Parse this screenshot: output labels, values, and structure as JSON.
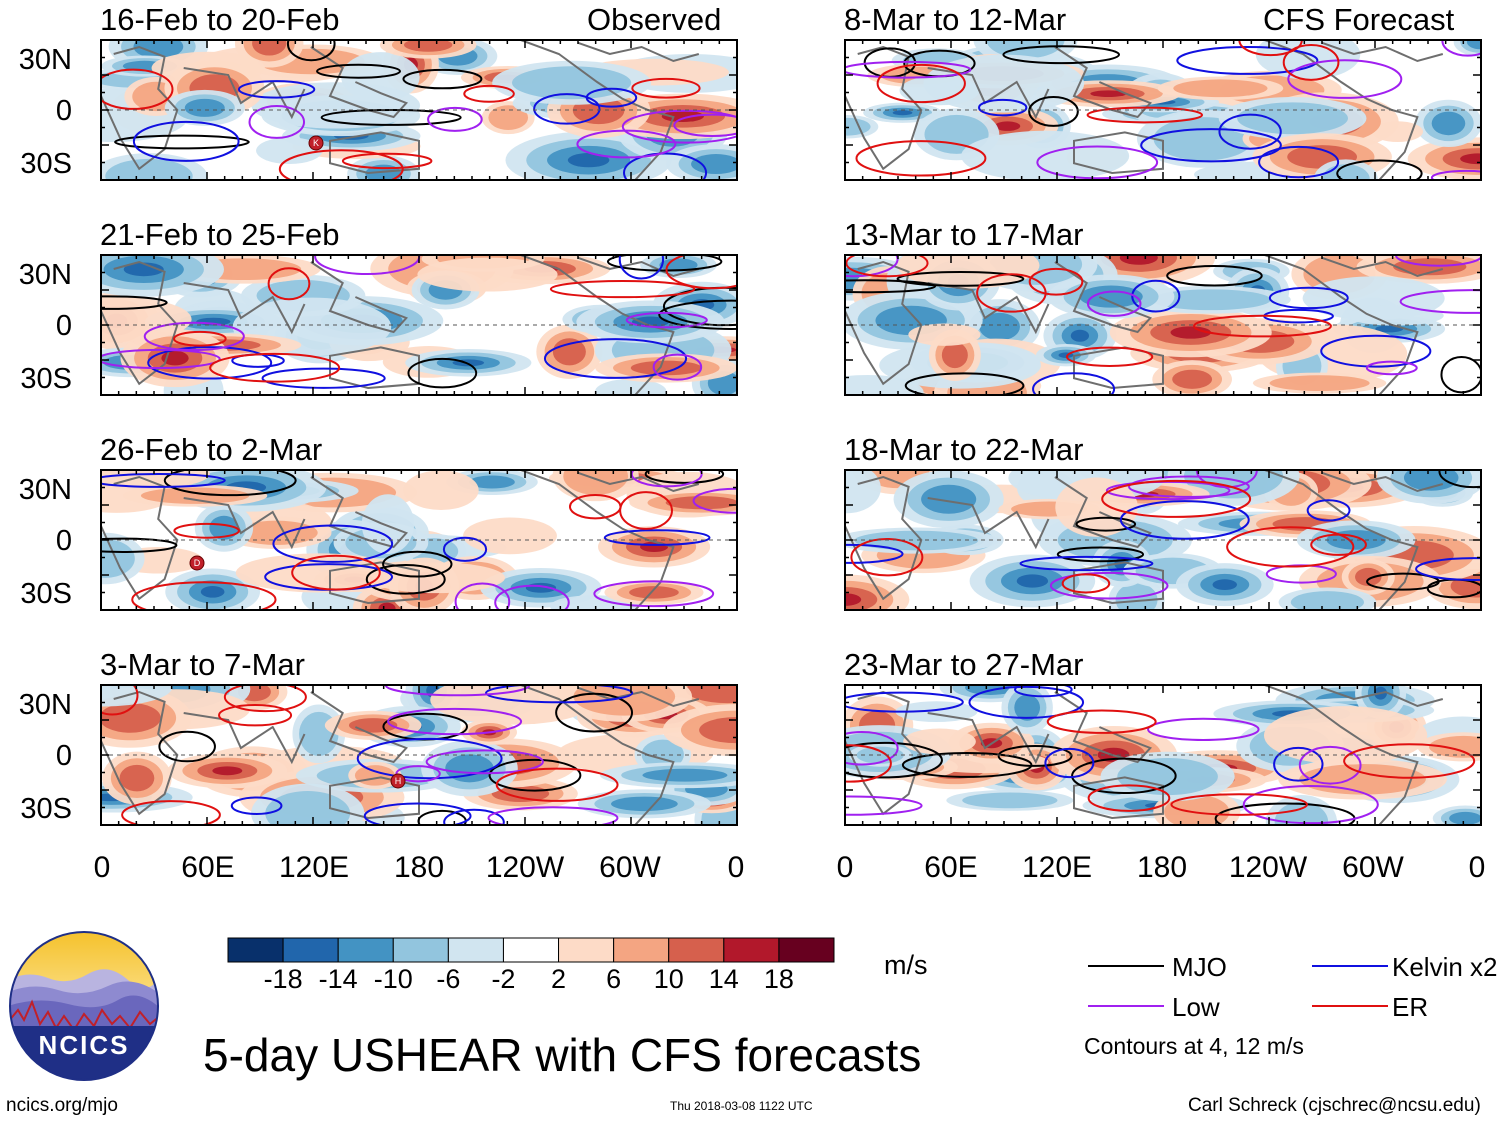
{
  "main_title": "5-day USHEAR with CFS forecasts",
  "observed_label": "Observed",
  "forecast_label": "CFS Forecast",
  "lat_labels": [
    "30N",
    "0",
    "30S"
  ],
  "lon_labels": [
    "0",
    "60E",
    "120E",
    "180",
    "120W",
    "60W",
    "0"
  ],
  "panels": {
    "left": [
      {
        "title": "16-Feb to 20-Feb"
      },
      {
        "title": "21-Feb to 25-Feb"
      },
      {
        "title": "26-Feb to 2-Mar"
      },
      {
        "title": "3-Mar to 7-Mar"
      }
    ],
    "right": [
      {
        "title": "8-Mar to 12-Mar"
      },
      {
        "title": "13-Mar to 17-Mar"
      },
      {
        "title": "18-Mar to 22-Mar"
      },
      {
        "title": "23-Mar to 27-Mar"
      }
    ]
  },
  "storm_markers": [
    {
      "panel": "left-0",
      "label": "K"
    },
    {
      "panel": "left-2",
      "label": "D"
    },
    {
      "panel": "left-3",
      "label": "H"
    }
  ],
  "colorbar": {
    "units": "m/s",
    "ticks": [
      "-18",
      "-14",
      "-10",
      "-6",
      "-2",
      "2",
      "6",
      "10",
      "14",
      "18"
    ],
    "colors": [
      "#08306b",
      "#2166ac",
      "#4393c3",
      "#92c5de",
      "#d1e5f0",
      "#ffffff",
      "#fddbc7",
      "#f4a582",
      "#d6604d",
      "#b2182b",
      "#67001f"
    ]
  },
  "legend": {
    "items": [
      {
        "label": "MJO",
        "color": "#000000"
      },
      {
        "label": "Kelvin x2",
        "color": "#1010e0"
      },
      {
        "label": "Low",
        "color": "#a020f0"
      },
      {
        "label": "ER",
        "color": "#e01010"
      }
    ],
    "contours_note": "Contours at 4, 12 m/s"
  },
  "logo": {
    "text": "NCICS"
  },
  "footer": {
    "left": "ncics.org/mjo",
    "center": "Thu 2018-03-08 1122 UTC",
    "right": "Carl Schreck (cjschrec@ncsu.edu)"
  }
}
